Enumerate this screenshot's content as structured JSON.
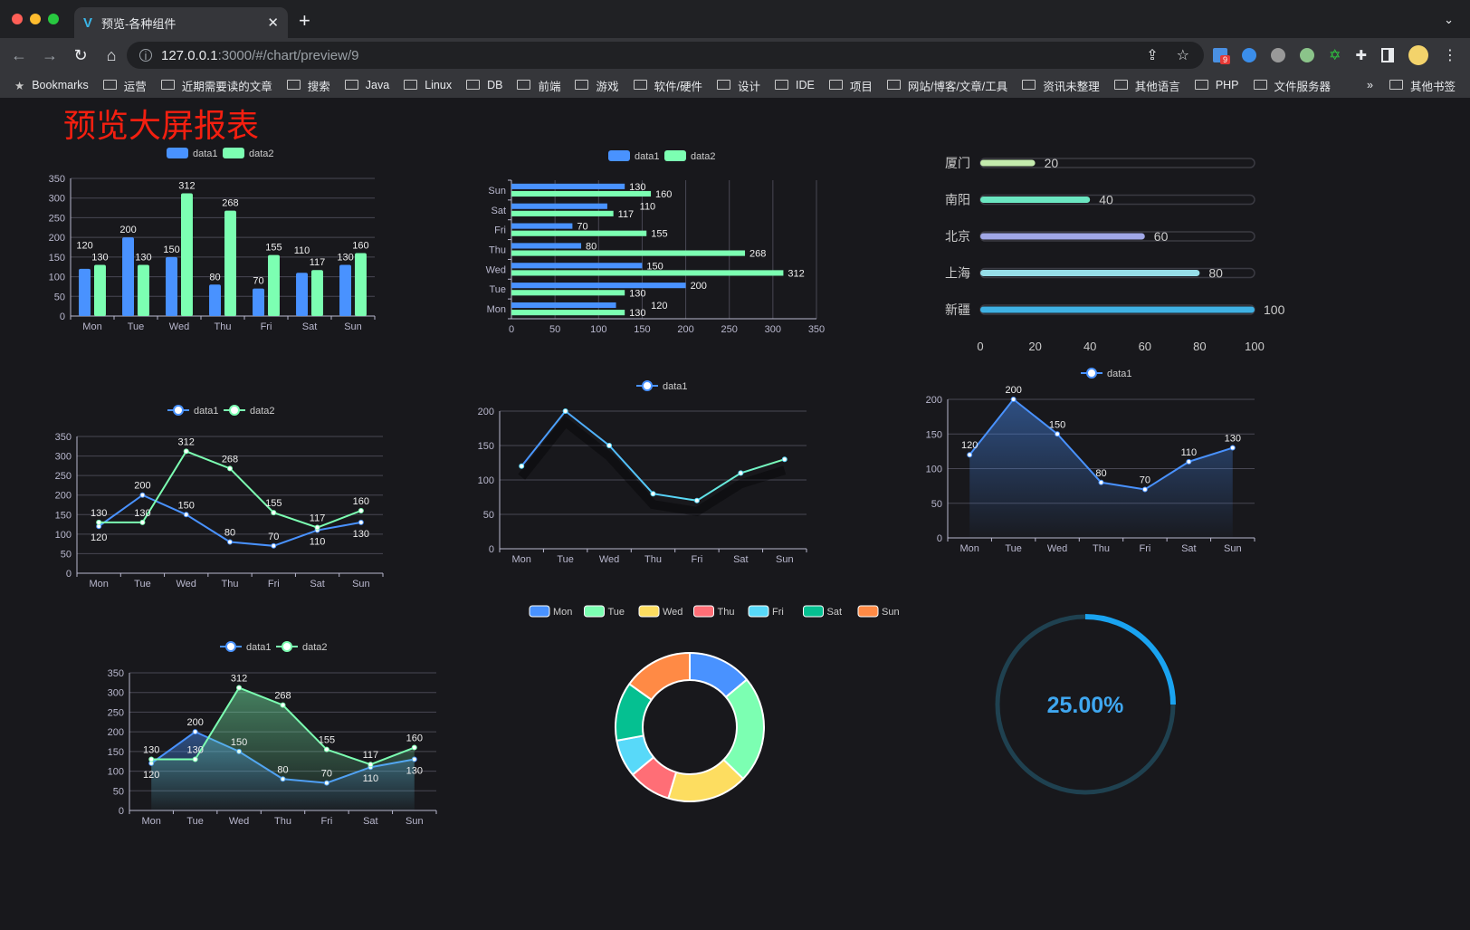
{
  "browser": {
    "tab_title": "预览-各种组件",
    "url_host": "127.0.0.1",
    "url_path": ":3000/#/chart/preview/9",
    "extension_badge": "9",
    "bookmarks": [
      "Bookmarks",
      "运营",
      "近期需要读的文章",
      "搜索",
      "Java",
      "Linux",
      "DB",
      "前端",
      "游戏",
      "软件/硬件",
      "设计",
      "IDE",
      "项目",
      "网站/博客/文章/工具",
      "资讯未整理",
      "其他语言",
      "PHP",
      "文件服务器"
    ],
    "bookmarks_more": "»",
    "other_bookmarks": "其他书签"
  },
  "page": {
    "title": "预览大屏报表",
    "title_color": "#f41f10",
    "background": "#18181c"
  },
  "colors": {
    "data1": "#4992ff",
    "data2": "#7cffb2",
    "axis_text": "#b9b8ce",
    "grid": "#484753"
  },
  "chart_data": [
    {
      "id": "bar",
      "type": "bar",
      "legend": [
        "data1",
        "data2"
      ],
      "categories": [
        "Mon",
        "Tue",
        "Wed",
        "Thu",
        "Fri",
        "Sat",
        "Sun"
      ],
      "series": [
        {
          "name": "data1",
          "values": [
            120,
            200,
            150,
            80,
            70,
            110,
            130
          ]
        },
        {
          "name": "data2",
          "values": [
            130,
            130,
            312,
            268,
            155,
            117,
            160
          ]
        }
      ],
      "ylim": [
        0,
        350
      ],
      "yticks": [
        0,
        50,
        100,
        150,
        200,
        250,
        300,
        350
      ],
      "grid": true,
      "legend_position": "top"
    },
    {
      "id": "hbar",
      "type": "bar",
      "orientation": "horizontal",
      "legend": [
        "data1",
        "data2"
      ],
      "categories": [
        "Mon",
        "Tue",
        "Wed",
        "Thu",
        "Fri",
        "Sat",
        "Sun"
      ],
      "series": [
        {
          "name": "data1",
          "values": [
            120,
            200,
            150,
            80,
            70,
            110,
            130
          ]
        },
        {
          "name": "data2",
          "values": [
            130,
            130,
            312,
            268,
            155,
            117,
            160
          ]
        }
      ],
      "xlim": [
        0,
        350
      ],
      "xticks": [
        0,
        50,
        100,
        150,
        200,
        250,
        300,
        350
      ],
      "grid": true,
      "legend_position": "top"
    },
    {
      "id": "progress",
      "type": "bar",
      "orientation": "horizontal",
      "categories": [
        "厦门",
        "南阳",
        "北京",
        "上海",
        "新疆"
      ],
      "values": [
        20,
        40,
        60,
        80,
        100
      ],
      "colors": [
        "#c4ebad",
        "#6be6c1",
        "#a0a7e6",
        "#96dee8",
        "#3fb1e3"
      ],
      "xlim": [
        0,
        100
      ],
      "xticks": [
        0,
        20,
        40,
        60,
        80,
        100
      ]
    },
    {
      "id": "line2",
      "type": "line",
      "legend": [
        "data1",
        "data2"
      ],
      "categories": [
        "Mon",
        "Tue",
        "Wed",
        "Thu",
        "Fri",
        "Sat",
        "Sun"
      ],
      "series": [
        {
          "name": "data1",
          "values": [
            120,
            200,
            150,
            80,
            70,
            110,
            130
          ]
        },
        {
          "name": "data2",
          "values": [
            130,
            130,
            312,
            268,
            155,
            117,
            160
          ]
        }
      ],
      "ylim": [
        0,
        350
      ],
      "yticks": [
        0,
        50,
        100,
        150,
        200,
        250,
        300,
        350
      ],
      "grid": true
    },
    {
      "id": "line1",
      "type": "line",
      "legend": [
        "data1"
      ],
      "categories": [
        "Mon",
        "Tue",
        "Wed",
        "Thu",
        "Fri",
        "Sat",
        "Sun"
      ],
      "series": [
        {
          "name": "data1",
          "values": [
            120,
            200,
            150,
            80,
            70,
            110,
            130
          ]
        }
      ],
      "ylim": [
        0,
        200
      ],
      "yticks": [
        0,
        50,
        100,
        150,
        200
      ],
      "grid": true,
      "gradient_line": true
    },
    {
      "id": "area1",
      "type": "area",
      "legend": [
        "data1"
      ],
      "categories": [
        "Mon",
        "Tue",
        "Wed",
        "Thu",
        "Fri",
        "Sat",
        "Sun"
      ],
      "series": [
        {
          "name": "data1",
          "values": [
            120,
            200,
            150,
            80,
            70,
            110,
            130
          ]
        }
      ],
      "ylim": [
        0,
        200
      ],
      "yticks": [
        0,
        50,
        100,
        150,
        200
      ],
      "grid": true,
      "labels": true
    },
    {
      "id": "area2",
      "type": "area",
      "legend": [
        "data1",
        "data2"
      ],
      "categories": [
        "Mon",
        "Tue",
        "Wed",
        "Thu",
        "Fri",
        "Sat",
        "Sun"
      ],
      "series": [
        {
          "name": "data1",
          "values": [
            120,
            200,
            150,
            80,
            70,
            110,
            130
          ]
        },
        {
          "name": "data2",
          "values": [
            130,
            130,
            312,
            268,
            155,
            117,
            160
          ]
        }
      ],
      "ylim": [
        0,
        350
      ],
      "yticks": [
        0,
        50,
        100,
        150,
        200,
        250,
        300,
        350
      ],
      "grid": true,
      "labels": true
    },
    {
      "id": "pie",
      "type": "pie",
      "donut": true,
      "categories": [
        "Mon",
        "Tue",
        "Wed",
        "Thu",
        "Fri",
        "Sat",
        "Sun"
      ],
      "values": [
        120,
        200,
        150,
        80,
        70,
        110,
        130
      ],
      "colors": [
        "#4992ff",
        "#7cffb2",
        "#fddd60",
        "#ff6e76",
        "#58d9f9",
        "#05c091",
        "#ff8a45"
      ],
      "legend_position": "top"
    },
    {
      "id": "gauge",
      "type": "gauge",
      "value": 0.25,
      "label": "25.00%",
      "color": "#1aa3f0",
      "track_color": "#1f4150"
    }
  ]
}
